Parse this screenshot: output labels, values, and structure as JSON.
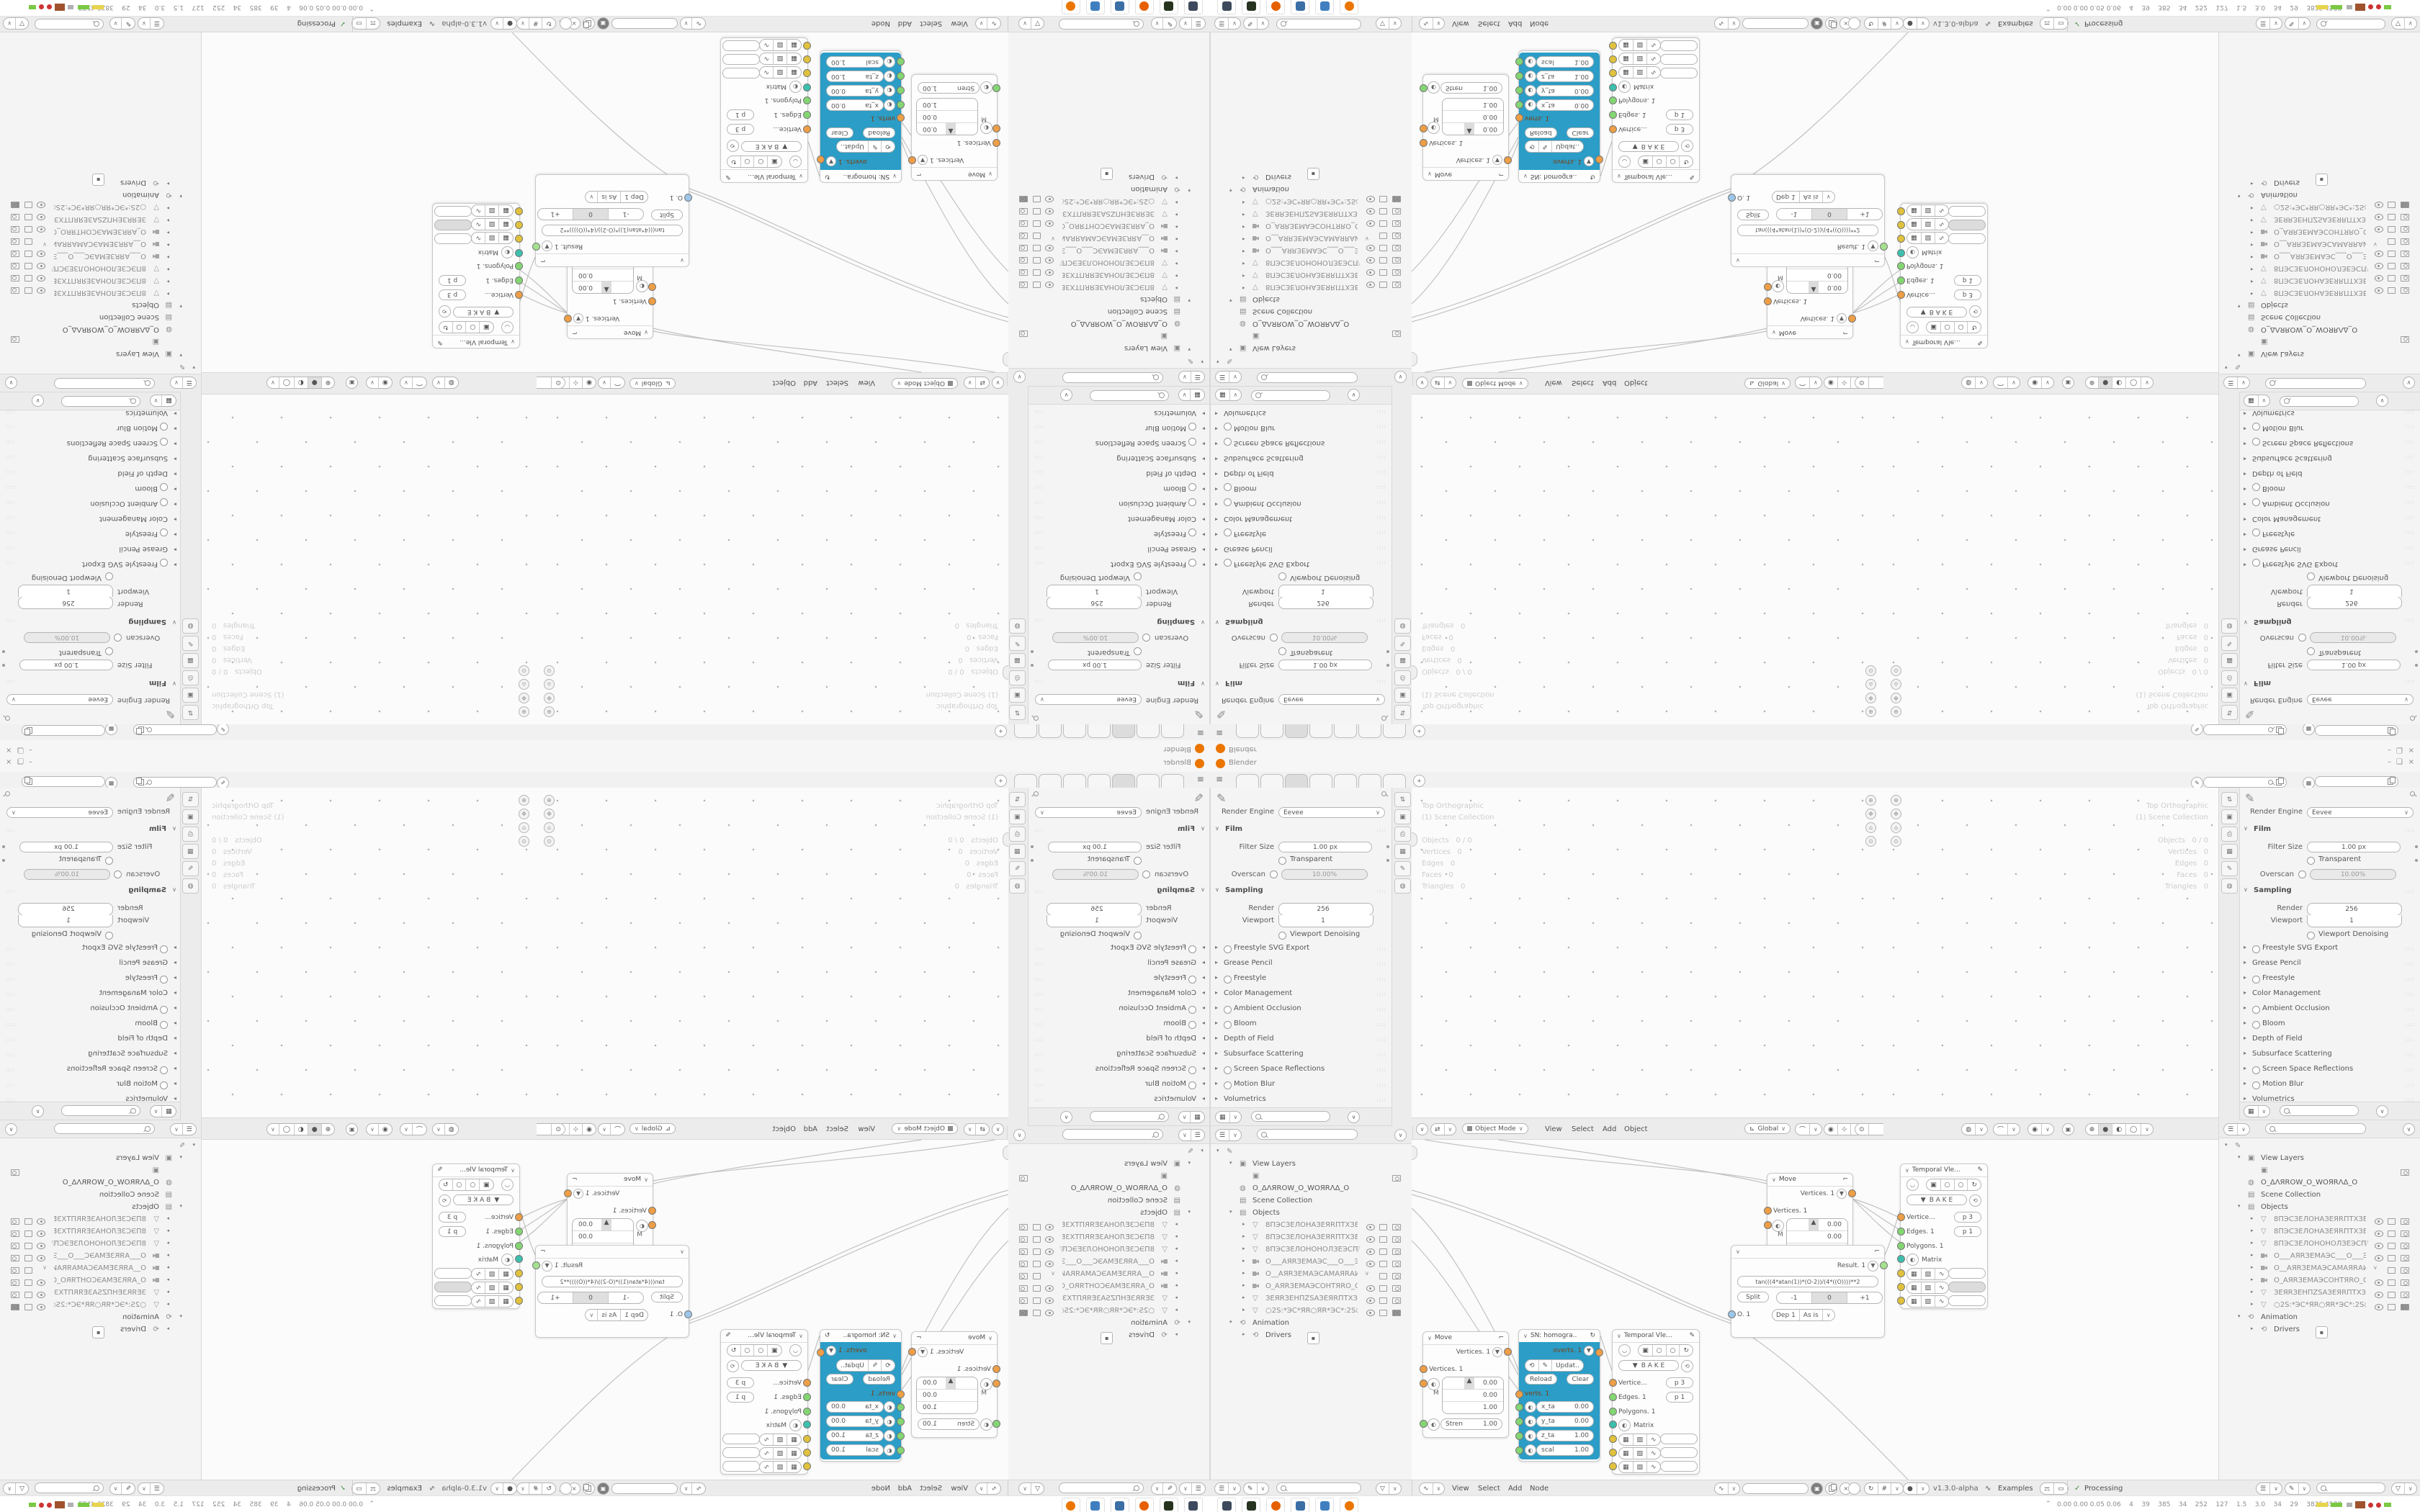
{
  "window": {
    "title": "Blender",
    "controls": {
      "minimize": "–",
      "restore": "❏",
      "close": "×"
    },
    "tabs": {
      "count": 7,
      "active_index": 2,
      "new_tab_label": "+"
    }
  },
  "props": {
    "engine_label": "Render Engine",
    "engine_value": "Eevee",
    "rows": [
      {
        "t": "section",
        "label": "Film"
      },
      {
        "t": "field",
        "label": "Filter Size",
        "value": "1.00 px",
        "dot": true
      },
      {
        "t": "check",
        "label": "Transparent",
        "dot": true
      },
      {
        "t": "disabled",
        "label": "Overscan",
        "value": "10.00%"
      },
      {
        "t": "section",
        "label": "Sampling"
      },
      {
        "t": "stack",
        "a_label": "Render",
        "a_value": "256",
        "b_label": "Viewport",
        "b_value": "1"
      },
      {
        "t": "check",
        "label": "Viewport Denoising",
        "dot": false
      },
      {
        "t": "closed",
        "label": "Freestyle SVG Export",
        "check": true
      },
      {
        "t": "closed",
        "label": "Grease Pencil",
        "check": false
      },
      {
        "t": "closed",
        "label": "Freestyle",
        "check": true
      },
      {
        "t": "closed",
        "label": "Color Management",
        "check": false
      },
      {
        "t": "closed",
        "label": "Ambient Occlusion",
        "check": true
      },
      {
        "t": "closed",
        "label": "Bloom",
        "check": true
      },
      {
        "t": "closed",
        "label": "Depth of Field",
        "check": false
      },
      {
        "t": "closed",
        "label": "Subsurface Scattering",
        "check": false
      },
      {
        "t": "closed",
        "label": "Screen Space Reflections",
        "check": true
      },
      {
        "t": "closed",
        "label": "Motion Blur",
        "check": true
      },
      {
        "t": "closed",
        "label": "Volumetrics",
        "check": false
      }
    ],
    "tab_icons": [
      "tool-icon",
      "render-icon",
      "printer-icon",
      "view-layer-icon",
      "scene-icon",
      "world-icon"
    ]
  },
  "viewport": {
    "overlay": [
      "Top Orthographic",
      "(1) Scene Collection"
    ],
    "stats": [
      [
        "Objects",
        "0 / 0"
      ],
      [
        "Vertices",
        "0"
      ],
      [
        "Edges",
        "0"
      ],
      [
        "Faces",
        "0"
      ],
      [
        "Triangles",
        "0"
      ]
    ],
    "header": {
      "mode": "Object Mode",
      "menus": [
        "View",
        "Select",
        "Add",
        "Object"
      ],
      "orientation": "Global"
    }
  },
  "outliner": {
    "view_layers": "View Layers",
    "world_name": "O_ΔΛЯROW_O_WOЯRΛΔ_O",
    "scene_collection": "Scene Collection",
    "objects_label": "Objects",
    "animation": "Animation",
    "drivers": "Drivers",
    "objects": [
      {
        "icon": "mesh",
        "name": "8ПЭСЗЕЛОНАЗЕЯRПТХЗЕТОТЗЕХ1",
        "eye": true,
        "extra": false,
        "cam_on": false
      },
      {
        "icon": "mesh",
        "name": "8ПЭСЗЕЛОНАЗЕЯRПТХЗЕТӨТЗЕХ",
        "eye": true,
        "extra": false,
        "cam_on": false
      },
      {
        "icon": "mesh",
        "name": "8ПЭСЗЕЛОНОНОЛЗЕЭСП8",
        "eye": true,
        "extra": true,
        "cam_on": false
      },
      {
        "icon": "camera",
        "name": "O___AЯRЗЕМАЭС___O___ЭСАМЗЕ",
        "eye": true,
        "extra": false,
        "cam_on": false
      },
      {
        "icon": "camera",
        "name": "O__AЯRЗЕМАЭСАМАЯRАИНАП_O_",
        "eye": false,
        "extra": false,
        "cam_on": false
      },
      {
        "icon": "camera",
        "name": "O_AЯRЗЕМАЭСОНТЯRO_O_OЯRТНС",
        "eye": true,
        "extra": false,
        "cam_on": false
      },
      {
        "icon": "mesh",
        "name": "ЗЕЯRЗЕНПZSАЗЕЯRПТХЗЕТОТЗЕ(",
        "eye": true,
        "extra": false,
        "cam_on": false
      },
      {
        "icon": "mesh",
        "name": "○2S:*ЭС*ЯR○ЯR*ЭС*:2S○",
        "eye": true,
        "extra": false,
        "cam_on": true
      }
    ]
  },
  "nodes": {
    "move": {
      "title": "Move",
      "output": "Vertices. 1",
      "input": "Vertices. 1",
      "axis": "M",
      "vector": [
        "0.00",
        "0.00",
        "1.00"
      ],
      "stren_label": "Stren",
      "stren_value": "1.00"
    },
    "sn": {
      "title": "SN: homogra..",
      "output": "overts. 1",
      "update": "Updat..",
      "reload": "Reload",
      "clear": "Clear",
      "input": "verts. 1",
      "fields": [
        [
          "x_ta",
          "0.00"
        ],
        [
          "y_ta",
          "0.00"
        ],
        [
          "z_ta",
          "1.00"
        ],
        [
          "scal",
          "1.00"
        ]
      ]
    },
    "temporal": {
      "title": "Temporal Vle...",
      "bake": "B A K E",
      "vert_label": "Vertice...",
      "vert_value": "p 3",
      "edge_label": "Edges. 1",
      "edge_value": "p 1",
      "polygons": "Polygons. 1",
      "matrix": "Matrix"
    },
    "result": {
      "output": "Result. 1",
      "formula": "tan(((4*atan(1))*(O-2))/(4*((O))))**2",
      "split": "Split",
      "split_vals": [
        "-1",
        "0",
        "+1"
      ],
      "o_label": "O. 1",
      "dep_label": "Dep",
      "dep_value": "1",
      "mode_value": "As is"
    }
  },
  "node_header": {
    "menus": [
      "View",
      "Select",
      "Add",
      "Node"
    ],
    "version": "v1.3.0-alpha",
    "examples": "Examples",
    "check": "✓",
    "processing": "Processing"
  },
  "taskbar": {
    "stats": "0.00 0.00 0.05 0.06    4    39    385    34    252    127    1.5    3.0    34    29    3825 4577",
    "apps": [
      "screen-tool",
      "reader",
      "firefox",
      "gimp",
      "image-viewer",
      "blender"
    ],
    "app_colors": [
      "#3d4a5d",
      "#27331f",
      "#e66000",
      "#3b6ea5",
      "#3f7fbf",
      "#ea7600"
    ]
  },
  "colors": {
    "accent_blue_node": "#2b9dc6",
    "socket_orange": "#ed9e46",
    "socket_green": "#84d673",
    "socket_teal": "#3dbfae",
    "socket_yellow": "#e0c23d",
    "socket_blue": "#9cc6e8"
  }
}
